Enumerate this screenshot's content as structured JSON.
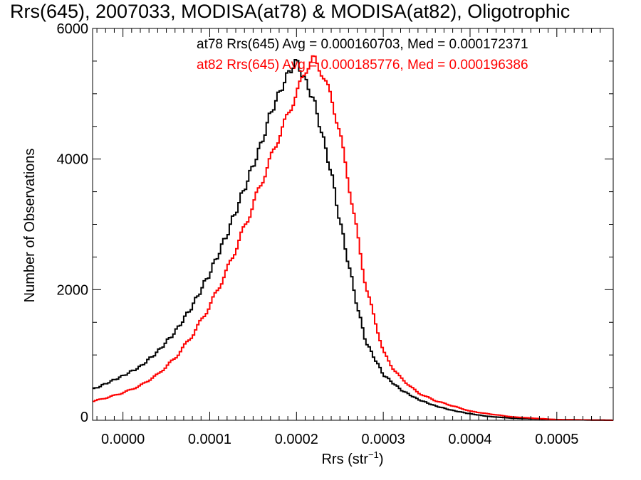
{
  "chart_data": {
    "type": "line",
    "title": "Rrs(645), 2007033, MODISA(at78) & MODISA(at82), Oligotrophic",
    "xlabel_base": "Rrs (str",
    "xlabel_sup": "−1",
    "xlabel_close": ")",
    "ylabel": "Number of Observations",
    "xlim": [
      -3.5e-05,
      0.000565
    ],
    "ylim": [
      0,
      6000
    ],
    "x_ticks": [
      0.0,
      0.0001,
      0.0002,
      0.0003,
      0.0004,
      0.0005
    ],
    "x_tick_labels": [
      "0.0000",
      "0.0001",
      "0.0002",
      "0.0003",
      "0.0004",
      "0.0005"
    ],
    "y_ticks": [
      0,
      2000,
      4000,
      6000
    ],
    "y_tick_labels": [
      "0",
      "2000",
      "4000",
      "6000"
    ],
    "grid": false,
    "series": [
      {
        "name": "at78",
        "color": "#000000",
        "annotation": "at78 Rrs(645) Avg = 0.000160703, Med = 0.000172371",
        "x": [
          -3.5e-05,
          -2e-05,
          0.0,
          2e-05,
          4e-05,
          6e-05,
          8e-05,
          0.0001,
          0.00012,
          0.00014,
          0.00016,
          0.00017,
          0.00018,
          0.00019,
          0.0002,
          0.00021,
          0.00022,
          0.00023,
          0.00024,
          0.00025,
          0.00026,
          0.00027,
          0.00028,
          0.0003,
          0.00032,
          0.00034,
          0.00036,
          0.00038,
          0.0004,
          0.00042,
          0.00045,
          0.0005,
          0.000565
        ],
        "y": [
          470,
          560,
          680,
          820,
          1050,
          1350,
          1750,
          2250,
          2850,
          3550,
          4250,
          4700,
          5000,
          5300,
          5500,
          5200,
          4900,
          4350,
          3800,
          3050,
          2400,
          1750,
          1200,
          700,
          470,
          320,
          220,
          150,
          100,
          60,
          30,
          10,
          0
        ]
      },
      {
        "name": "at82",
        "color": "#ff0000",
        "annotation": "at82 Rrs(645) Avg = 0.000185776, Med = 0.000196386",
        "x": [
          -3.5e-05,
          -2e-05,
          0.0,
          2e-05,
          4e-05,
          6e-05,
          8e-05,
          0.0001,
          0.00012,
          0.00014,
          0.00016,
          0.00018,
          0.0002,
          0.00021,
          0.00022,
          0.00023,
          0.00024,
          0.00025,
          0.00026,
          0.00027,
          0.00028,
          0.00029,
          0.0003,
          0.00031,
          0.00032,
          0.00034,
          0.00036,
          0.00038,
          0.0004,
          0.00042,
          0.00045,
          0.0005,
          0.000565
        ],
        "y": [
          290,
          340,
          420,
          530,
          700,
          950,
          1300,
          1750,
          2300,
          2950,
          3650,
          4350,
          5000,
          5350,
          5550,
          5300,
          4950,
          4400,
          3650,
          2850,
          2050,
          1550,
          1050,
          820,
          650,
          420,
          300,
          220,
          140,
          100,
          50,
          10,
          0
        ]
      }
    ]
  }
}
